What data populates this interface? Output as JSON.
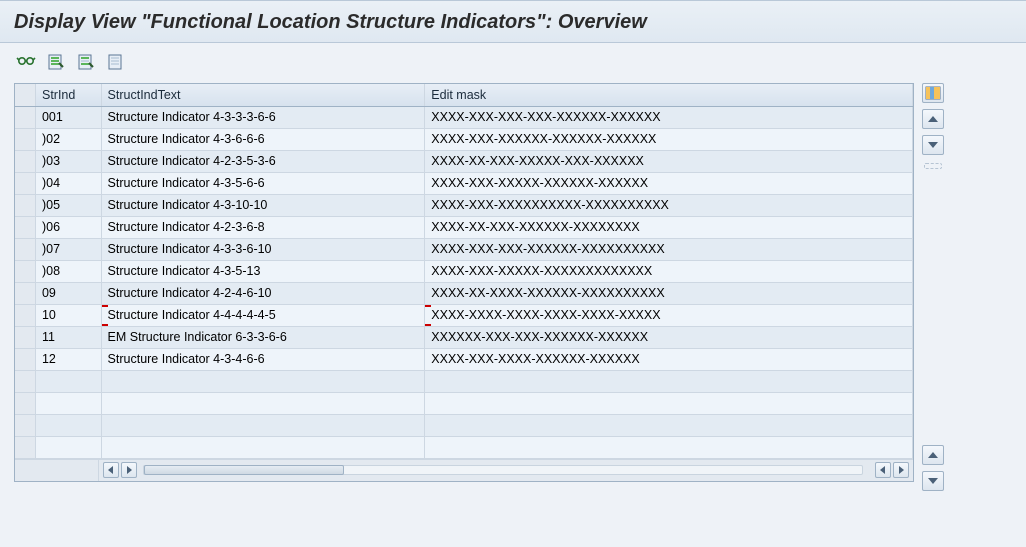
{
  "colors": {
    "title_text": "#2b2b2b",
    "header_bg_top": "#e7eef6",
    "header_bg_bottom": "#d7e2ee",
    "row_odd": "#e3ebf3",
    "row_even": "#eef4fa",
    "grid_border": "#9fb2c5",
    "cell_border": "#cdd7e2",
    "edit_marker": "#cc0000",
    "toolbar_glasses": "#2a7330",
    "toolbar_doc_fill": "#e7eef6",
    "toolbar_doc_border": "#5b7594"
  },
  "title": "Display View \"Functional Location Structure Indicators\": Overview",
  "toolbar": {
    "icons": [
      "glasses-select",
      "expand-all",
      "collapse-all",
      "print"
    ]
  },
  "table": {
    "columns": {
      "strind": "StrInd",
      "structindtext": "StructIndText",
      "editmask": "Edit mask"
    },
    "rows": [
      {
        "strind": "001",
        "text": "Structure Indicator 4-3-3-3-6-6",
        "mask": "XXXX-XXX-XXX-XXX-XXXXXX-XXXXXX"
      },
      {
        "strind": ")02",
        "text": "Structure Indicator 4-3-6-6-6",
        "mask": "XXXX-XXX-XXXXXX-XXXXXX-XXXXXX"
      },
      {
        "strind": ")03",
        "text": "Structure Indicator 4-2-3-5-3-6",
        "mask": "XXXX-XX-XXX-XXXXX-XXX-XXXXXX"
      },
      {
        "strind": ")04",
        "text": "Structure Indicator 4-3-5-6-6",
        "mask": "XXXX-XXX-XXXXX-XXXXXX-XXXXXX"
      },
      {
        "strind": ")05",
        "text": "Structure Indicator 4-3-10-10",
        "mask": "XXXX-XXX-XXXXXXXXXX-XXXXXXXXXX"
      },
      {
        "strind": ")06",
        "text": "Structure Indicator 4-2-3-6-8",
        "mask": "XXXX-XX-XXX-XXXXXX-XXXXXXXX"
      },
      {
        "strind": ")07",
        "text": "Structure Indicator 4-3-3-6-10",
        "mask": "XXXX-XXX-XXX-XXXXXX-XXXXXXXXXX"
      },
      {
        "strind": ")08",
        "text": "Structure Indicator 4-3-5-13",
        "mask": "XXXX-XXX-XXXXX-XXXXXXXXXXXXX"
      },
      {
        "strind": "09",
        "text": "Structure Indicator 4-2-4-6-10",
        "mask": "XXXX-XX-XXXX-XXXXXX-XXXXXXXXXX"
      },
      {
        "strind": "10",
        "text": "Structure Indicator 4-4-4-4-4-5",
        "mask": "XXXX-XXXX-XXXX-XXXX-XXXX-XXXXX",
        "editing": true
      },
      {
        "strind": "11",
        "text": "EM Structure Indicator 6-3-3-6-6",
        "mask": "XXXXXX-XXX-XXX-XXXXXX-XXXXXX"
      },
      {
        "strind": "12",
        "text": "Structure Indicator 4-3-4-6-6",
        "mask": "XXXX-XXX-XXXX-XXXXXX-XXXXXX"
      }
    ],
    "blank_rows": 4
  }
}
